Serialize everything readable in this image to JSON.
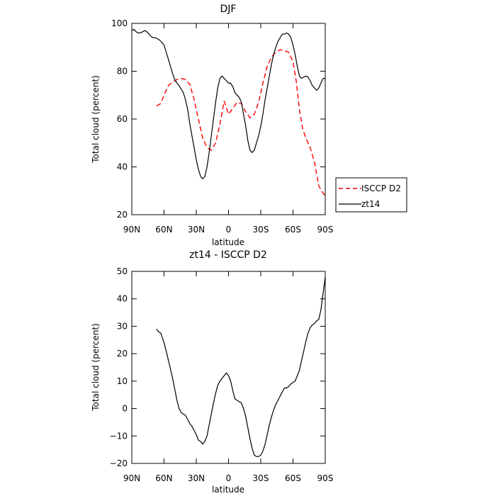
{
  "chart_data": [
    {
      "type": "line",
      "title": "DJF",
      "xlabel": "latitude",
      "ylabel": "Total cloud (percent)",
      "xlim": [
        90,
        -90
      ],
      "ylim": [
        20,
        100
      ],
      "xticks": [
        90,
        60,
        30,
        0,
        -30,
        -60,
        -90
      ],
      "xtick_labels": [
        "90N",
        "60N",
        "30N",
        "0",
        "30S",
        "60S",
        "90S"
      ],
      "yticks": [
        20,
        40,
        60,
        80,
        100
      ],
      "ytick_labels": [
        "20",
        "40",
        "60",
        "80",
        "100"
      ],
      "legend": "outside-right",
      "series": [
        {
          "name": "ISCCP D2",
          "color": "#ff0000",
          "dash": "dashed",
          "x": [
            67,
            63,
            60,
            56,
            52,
            48,
            44,
            40,
            36,
            32,
            28,
            24,
            20,
            16,
            12,
            8,
            4,
            0,
            -4,
            -8,
            -12,
            -16,
            -20,
            -24,
            -28,
            -32,
            -36,
            -40,
            -44,
            -48,
            -52,
            -56,
            -60,
            -63,
            -66,
            -69,
            -72,
            -76,
            -80,
            -84,
            -88,
            -90
          ],
          "y": [
            65.5,
            66.5,
            70,
            74,
            75.5,
            76.5,
            77,
            76.5,
            74.5,
            68,
            60,
            52,
            48,
            47,
            50,
            58,
            67.5,
            62,
            64.5,
            67,
            66.5,
            63,
            60.5,
            62,
            67,
            75,
            82,
            86,
            88,
            89,
            88.5,
            88,
            84,
            76,
            64,
            56,
            52,
            48,
            42,
            32,
            29,
            28
          ]
        },
        {
          "name": "zt14",
          "color": "#000000",
          "dash": "solid",
          "x": [
            90,
            88,
            86,
            84,
            82,
            80,
            78,
            76,
            74,
            72,
            70,
            68,
            66,
            64,
            62,
            60,
            58,
            56,
            54,
            52,
            50,
            48,
            46,
            44,
            42,
            40,
            38,
            36,
            34,
            32,
            30,
            28,
            26,
            24,
            22,
            20,
            18,
            16,
            14,
            12,
            10,
            8,
            6,
            4,
            2,
            0,
            -2,
            -4,
            -6,
            -8,
            -10,
            -12,
            -14,
            -16,
            -18,
            -20,
            -22,
            -24,
            -26,
            -28,
            -30,
            -32,
            -34,
            -36,
            -38,
            -40,
            -42,
            -44,
            -46,
            -48,
            -50,
            -52,
            -54,
            -56,
            -58,
            -60,
            -62,
            -64,
            -66,
            -68,
            -70,
            -72,
            -74,
            -76,
            -78,
            -80,
            -82,
            -84,
            -86,
            -88,
            -90
          ],
          "y": [
            97,
            97.5,
            96.5,
            96,
            96,
            96.5,
            97,
            96.5,
            95.5,
            94.5,
            94,
            94,
            93.5,
            93,
            92,
            91,
            88,
            85,
            82,
            79,
            76.5,
            75,
            74,
            72.5,
            71,
            68,
            64,
            58,
            53,
            48,
            43,
            39,
            36,
            35,
            36,
            40,
            46,
            53,
            60,
            67,
            73,
            77,
            78,
            77,
            76,
            75,
            75,
            73.5,
            71,
            70,
            69,
            67,
            62,
            57,
            51,
            47,
            46,
            47,
            50,
            53,
            57,
            62,
            68,
            73,
            78,
            83,
            87,
            90,
            92.5,
            94,
            95.5,
            95.5,
            96,
            95.5,
            94,
            91,
            87,
            82,
            78,
            77,
            77.5,
            78,
            77.5,
            76,
            74,
            73,
            72,
            73,
            75,
            77,
            77
          ]
        }
      ]
    },
    {
      "type": "line",
      "title": "zt14 - ISCCP D2",
      "xlabel": "latitude",
      "ylabel": "Total cloud (percent)",
      "xlim": [
        90,
        -90
      ],
      "ylim": [
        -20,
        50
      ],
      "xticks": [
        90,
        60,
        30,
        0,
        -30,
        -60,
        -90
      ],
      "xtick_labels": [
        "90N",
        "60N",
        "30N",
        "0",
        "30S",
        "60S",
        "90S"
      ],
      "yticks": [
        -20,
        -10,
        0,
        10,
        20,
        30,
        40,
        50
      ],
      "ytick_labels": [
        "−20",
        "−10",
        "0",
        "10",
        "20",
        "30",
        "40",
        "50"
      ],
      "series": [
        {
          "color": "#000000",
          "dash": "solid",
          "x": [
            67,
            65,
            63,
            60,
            58,
            55,
            52,
            50,
            48,
            46,
            44,
            42,
            40,
            38,
            36,
            34,
            32,
            30,
            28,
            26,
            24,
            22,
            20,
            18,
            16,
            14,
            12,
            10,
            8,
            6,
            4,
            2,
            0,
            -2,
            -4,
            -6,
            -8,
            -10,
            -12,
            -14,
            -16,
            -18,
            -20,
            -22,
            -24,
            -26,
            -28,
            -30,
            -32,
            -34,
            -36,
            -38,
            -40,
            -42,
            -44,
            -46,
            -48,
            -50,
            -52,
            -54,
            -56,
            -58,
            -60,
            -62,
            -64,
            -66,
            -68,
            -70,
            -72,
            -74,
            -76,
            -78,
            -80,
            -82,
            -84,
            -86,
            -88,
            -90
          ],
          "y": [
            29,
            28,
            27.5,
            24,
            21,
            16,
            11,
            7,
            3,
            0,
            -1.5,
            -2,
            -2.5,
            -4,
            -5.5,
            -6.5,
            -8,
            -9.5,
            -11.5,
            -12,
            -13,
            -12,
            -10,
            -6,
            -2,
            2,
            5.5,
            8.5,
            10,
            11,
            12,
            13,
            12,
            10,
            6.5,
            3.5,
            3,
            2.5,
            2,
            0,
            -3,
            -7,
            -11,
            -14.5,
            -17,
            -17.5,
            -17.5,
            -17,
            -15.5,
            -13,
            -9.5,
            -6,
            -3,
            -0.5,
            1.5,
            3,
            4.5,
            6,
            7.5,
            7.5,
            8,
            9,
            9.5,
            10,
            12,
            14,
            17.5,
            21,
            24.5,
            27.5,
            29.5,
            30.5,
            31,
            32,
            32.5,
            36,
            42,
            48
          ]
        }
      ]
    }
  ]
}
